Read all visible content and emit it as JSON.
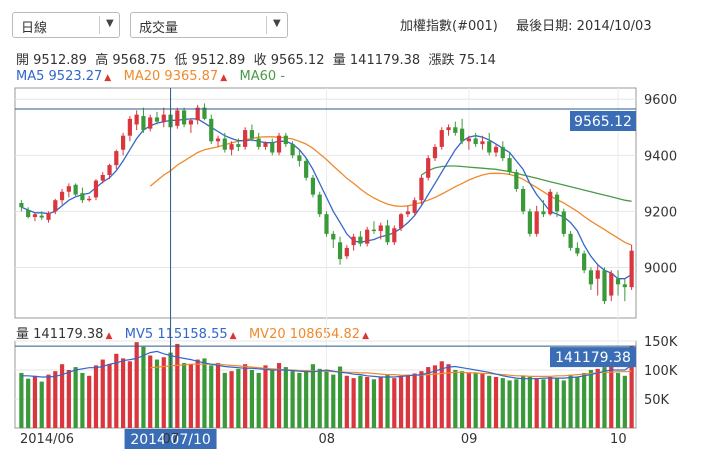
{
  "toolbar": {
    "period_select": "日線",
    "indicator_select": "成交量",
    "index_name": "加權指數(#001)",
    "last_date_label": "最後日期:",
    "last_date": "2014/10/03"
  },
  "ohlc": {
    "open_label": "開",
    "open": "9512.89",
    "high_label": "高",
    "high": "9568.75",
    "low_label": "低",
    "low": "9512.89",
    "close_label": "收",
    "close": "9565.12",
    "volume_label": "量",
    "volume": "141179.38",
    "change_label": "漲跌",
    "change": "75.14"
  },
  "ma": {
    "ma5_label": "MA5",
    "ma5": "9523.27",
    "ma20_label": "MA20",
    "ma20": "9365.87",
    "ma60_label": "MA60",
    "ma60": "-"
  },
  "volume_info": {
    "vol_label": "量",
    "vol": "141179.38",
    "mv5_label": "MV5",
    "mv5": "115158.55",
    "mv20_label": "MV20",
    "mv20": "108654.82"
  },
  "colors": {
    "up": "#d9363e",
    "down": "#3a9a3a",
    "ma5": "#3366cc",
    "ma20": "#ef8a2c",
    "ma60": "#4b9a4b",
    "highlight": "#3a6db5"
  },
  "price_axis": {
    "ticks": [
      "9600",
      "9400",
      "9200",
      "9000"
    ],
    "cursor_value": "9565.12"
  },
  "volume_axis": {
    "ticks": [
      "150K",
      "100K",
      "50K"
    ],
    "cursor_value": "141179.38"
  },
  "x_axis": {
    "labels": [
      "2014/06",
      "07",
      "08",
      "09",
      "10"
    ],
    "cursor_date": "2014 07/10"
  },
  "chart_data": {
    "type": "candlestick",
    "ylim": [
      8820,
      9640
    ],
    "volume_ylim": [
      0,
      150000
    ],
    "candles": [
      [
        9230,
        9240,
        9200,
        9215,
        95000
      ],
      [
        9205,
        9215,
        9175,
        9180,
        85000
      ],
      [
        9180,
        9195,
        9165,
        9190,
        90000
      ],
      [
        9185,
        9200,
        9170,
        9178,
        80000
      ],
      [
        9170,
        9200,
        9160,
        9195,
        92000
      ],
      [
        9200,
        9245,
        9190,
        9240,
        98000
      ],
      [
        9240,
        9280,
        9225,
        9270,
        110000
      ],
      [
        9270,
        9300,
        9250,
        9290,
        100000
      ],
      [
        9295,
        9300,
        9255,
        9260,
        105000
      ],
      [
        9265,
        9285,
        9230,
        9240,
        95000
      ],
      [
        9240,
        9255,
        9235,
        9245,
        90000
      ],
      [
        9250,
        9315,
        9240,
        9310,
        108000
      ],
      [
        9310,
        9340,
        9300,
        9330,
        118000
      ],
      [
        9330,
        9370,
        9315,
        9365,
        110000
      ],
      [
        9365,
        9420,
        9350,
        9415,
        128000
      ],
      [
        9420,
        9480,
        9400,
        9470,
        120000
      ],
      [
        9470,
        9540,
        9450,
        9530,
        115000
      ],
      [
        9510,
        9560,
        9490,
        9545,
        148000
      ],
      [
        9540,
        9570,
        9480,
        9490,
        140000
      ],
      [
        9495,
        9545,
        9485,
        9535,
        125000
      ],
      [
        9535,
        9555,
        9510,
        9520,
        118000
      ],
      [
        9520,
        9570,
        9500,
        9545,
        122000
      ],
      [
        9545,
        9560,
        9490,
        9500,
        130000
      ],
      [
        9505,
        9570,
        9495,
        9560,
        145000
      ],
      [
        9560,
        9570,
        9500,
        9510,
        112000
      ],
      [
        9510,
        9530,
        9480,
        9525,
        110000
      ],
      [
        9525,
        9580,
        9510,
        9570,
        118000
      ],
      [
        9570,
        9585,
        9525,
        9530,
        120000
      ],
      [
        9530,
        9545,
        9440,
        9450,
        108000
      ],
      [
        9450,
        9470,
        9430,
        9460,
        112000
      ],
      [
        9460,
        9480,
        9410,
        9420,
        95000
      ],
      [
        9420,
        9450,
        9400,
        9440,
        98000
      ],
      [
        9440,
        9460,
        9415,
        9430,
        102000
      ],
      [
        9430,
        9500,
        9420,
        9490,
        110000
      ],
      [
        9490,
        9510,
        9450,
        9460,
        100000
      ],
      [
        9460,
        9480,
        9420,
        9430,
        95000
      ],
      [
        9430,
        9450,
        9420,
        9445,
        108000
      ],
      [
        9445,
        9460,
        9400,
        9410,
        100000
      ],
      [
        9410,
        9480,
        9400,
        9470,
        112000
      ],
      [
        9470,
        9480,
        9430,
        9440,
        105000
      ],
      [
        9440,
        9450,
        9390,
        9400,
        98000
      ],
      [
        9400,
        9420,
        9360,
        9380,
        95000
      ],
      [
        9380,
        9390,
        9310,
        9320,
        100000
      ],
      [
        9320,
        9330,
        9250,
        9260,
        110000
      ],
      [
        9260,
        9270,
        9180,
        9190,
        102000
      ],
      [
        9190,
        9200,
        9110,
        9120,
        100000
      ],
      [
        9120,
        9130,
        9070,
        9100,
        92000
      ],
      [
        9090,
        9110,
        9010,
        9030,
        106000
      ],
      [
        9040,
        9080,
        9030,
        9070,
        90000
      ],
      [
        9080,
        9120,
        9060,
        9110,
        86000
      ],
      [
        9110,
        9130,
        9075,
        9085,
        90000
      ],
      [
        9085,
        9145,
        9075,
        9135,
        88000
      ],
      [
        9135,
        9165,
        9120,
        9130,
        84000
      ],
      [
        9130,
        9160,
        9100,
        9150,
        88000
      ],
      [
        9150,
        9170,
        9080,
        9090,
        92000
      ],
      [
        9090,
        9150,
        9080,
        9140,
        86000
      ],
      [
        9140,
        9195,
        9130,
        9190,
        90000
      ],
      [
        9190,
        9220,
        9180,
        9200,
        92000
      ],
      [
        9195,
        9250,
        9185,
        9240,
        94000
      ],
      [
        9240,
        9330,
        9225,
        9320,
        98000
      ],
      [
        9320,
        9400,
        9310,
        9390,
        105000
      ],
      [
        9390,
        9440,
        9380,
        9430,
        108000
      ],
      [
        9430,
        9500,
        9420,
        9490,
        115000
      ],
      [
        9490,
        9510,
        9470,
        9500,
        110000
      ],
      [
        9500,
        9520,
        9470,
        9480,
        100000
      ],
      [
        9495,
        9530,
        9440,
        9450,
        98000
      ],
      [
        9450,
        9470,
        9420,
        9460,
        96000
      ],
      [
        9460,
        9480,
        9430,
        9440,
        94000
      ],
      [
        9440,
        9470,
        9420,
        9450,
        95000
      ],
      [
        9450,
        9480,
        9400,
        9410,
        90000
      ],
      [
        9410,
        9440,
        9395,
        9430,
        88000
      ],
      [
        9430,
        9450,
        9380,
        9390,
        86000
      ],
      [
        9390,
        9410,
        9330,
        9340,
        82000
      ],
      [
        9340,
        9350,
        9270,
        9280,
        84000
      ],
      [
        9280,
        9290,
        9190,
        9200,
        90000
      ],
      [
        9200,
        9210,
        9110,
        9120,
        88000
      ],
      [
        9120,
        9220,
        9110,
        9200,
        86000
      ],
      [
        9200,
        9240,
        9180,
        9190,
        84000
      ],
      [
        9190,
        9280,
        9185,
        9270,
        88000
      ],
      [
        9260,
        9270,
        9180,
        9200,
        86000
      ],
      [
        9200,
        9210,
        9110,
        9120,
        82000
      ],
      [
        9120,
        9130,
        9060,
        9070,
        92000
      ],
      [
        9070,
        9090,
        9040,
        9050,
        88000
      ],
      [
        9050,
        9060,
        8980,
        8990,
        95000
      ],
      [
        8990,
        9000,
        8920,
        8940,
        100000
      ],
      [
        8960,
        9010,
        8900,
        8990,
        102000
      ],
      [
        8990,
        9000,
        8870,
        8880,
        105000
      ],
      [
        8900,
        8990,
        8880,
        8980,
        110000
      ],
      [
        8960,
        8990,
        8900,
        8940,
        95000
      ],
      [
        8940,
        8960,
        8880,
        8930,
        90000
      ],
      [
        8930,
        9080,
        8920,
        9060,
        141179
      ]
    ],
    "ma5": [
      9215,
      9205,
      9195,
      9195,
      9192,
      9200,
      9220,
      9240,
      9252,
      9260,
      9265,
      9285,
      9305,
      9320,
      9345,
      9380,
      9420,
      9460,
      9490,
      9505,
      9515,
      9520,
      9525,
      9525,
      9528,
      9530,
      9530,
      9515,
      9500,
      9485,
      9470,
      9460,
      9452,
      9452,
      9455,
      9450,
      9445,
      9445,
      9450,
      9450,
      9440,
      9420,
      9390,
      9350,
      9300,
      9250,
      9200,
      9160,
      9120,
      9095,
      9090,
      9095,
      9100,
      9110,
      9115,
      9125,
      9140,
      9160,
      9185,
      9220,
      9260,
      9300,
      9340,
      9380,
      9420,
      9450,
      9465,
      9470,
      9465,
      9455,
      9440,
      9425,
      9410,
      9380,
      9350,
      9300,
      9260,
      9230,
      9200,
      9190,
      9180,
      9160,
      9130,
      9080,
      9040,
      9010,
      8990,
      8980,
      8960,
      8960,
      8975
    ],
    "ma20": [
      null,
      null,
      null,
      null,
      null,
      null,
      null,
      null,
      null,
      null,
      null,
      null,
      null,
      null,
      null,
      null,
      null,
      null,
      null,
      9290,
      9310,
      9330,
      9345,
      9365,
      9380,
      9395,
      9410,
      9420,
      9425,
      9430,
      9438,
      9445,
      9450,
      9455,
      9460,
      9465,
      9466,
      9466,
      9465,
      9462,
      9458,
      9450,
      9440,
      9425,
      9405,
      9385,
      9362,
      9340,
      9318,
      9300,
      9280,
      9262,
      9248,
      9236,
      9226,
      9220,
      9218,
      9220,
      9225,
      9232,
      9240,
      9250,
      9262,
      9275,
      9288,
      9300,
      9312,
      9322,
      9330,
      9335,
      9336,
      9335,
      9332,
      9325,
      9315,
      9300,
      9285,
      9270,
      9255,
      9242,
      9230,
      9215,
      9200,
      9182,
      9165,
      9150,
      9135,
      9120,
      9105,
      9090,
      9080
    ],
    "ma60": [
      null,
      null,
      null,
      null,
      null,
      null,
      null,
      null,
      null,
      null,
      null,
      null,
      null,
      null,
      null,
      null,
      null,
      null,
      null,
      null,
      null,
      null,
      null,
      null,
      null,
      null,
      null,
      null,
      null,
      null,
      null,
      null,
      null,
      null,
      null,
      null,
      null,
      null,
      null,
      null,
      null,
      null,
      null,
      null,
      null,
      null,
      null,
      null,
      null,
      null,
      null,
      null,
      null,
      null,
      null,
      null,
      null,
      null,
      null,
      9330,
      9345,
      9355,
      9360,
      9362,
      9362,
      9360,
      9358,
      9356,
      9354,
      9352,
      9350,
      9346,
      9342,
      9336,
      9330,
      9324,
      9318,
      9312,
      9306,
      9300,
      9294,
      9288,
      9282,
      9276,
      9270,
      9264,
      9258,
      9252,
      9246,
      9240,
      9236
    ],
    "mv5": [
      90000,
      90000,
      89000,
      88000,
      88000,
      89000,
      92000,
      96000,
      100000,
      102000,
      104000,
      104000,
      106000,
      110000,
      112000,
      116000,
      118000,
      120000,
      125000,
      130000,
      132000,
      128000,
      125000,
      122000,
      120000,
      118000,
      115000,
      112000,
      110000,
      108000,
      106000,
      105000,
      104000,
      103000,
      103000,
      102000,
      101000,
      100000,
      100000,
      100000,
      99000,
      98000,
      97000,
      97000,
      98000,
      100000,
      98000,
      96000,
      95000,
      93000,
      92000,
      90000,
      89000,
      88000,
      88000,
      88000,
      89000,
      90000,
      91000,
      92000,
      95000,
      98000,
      102000,
      105000,
      106000,
      104000,
      102000,
      100000,
      98000,
      96000,
      93000,
      90000,
      88000,
      86000,
      85000,
      85000,
      85000,
      86000,
      86000,
      86000,
      86000,
      87000,
      88000,
      90000,
      92000,
      95000,
      98000,
      100000,
      100000,
      100000,
      108000
    ],
    "mv20": [
      null,
      null,
      null,
      null,
      null,
      null,
      null,
      null,
      null,
      null,
      null,
      null,
      null,
      null,
      null,
      null,
      null,
      null,
      null,
      104000,
      105000,
      106000,
      107000,
      108000,
      109000,
      110000,
      110000,
      110000,
      110000,
      110000,
      109000,
      108000,
      107000,
      106000,
      105000,
      104000,
      103000,
      102000,
      101000,
      100000,
      100000,
      99000,
      99000,
      98000,
      98000,
      98000,
      97000,
      97000,
      96000,
      96000,
      95000,
      95000,
      94000,
      93000,
      92000,
      92000,
      91000,
      91000,
      91000,
      91000,
      92000,
      93000,
      94000,
      95000,
      96000,
      96000,
      95000,
      95000,
      94000,
      94000,
      93000,
      92000,
      91000,
      90000,
      90000,
      89000,
      89000,
      89000,
      89000,
      90000,
      90000,
      91000,
      92000,
      93000,
      94000,
      95000,
      96000,
      96000,
      97000,
      97000,
      98000
    ]
  }
}
